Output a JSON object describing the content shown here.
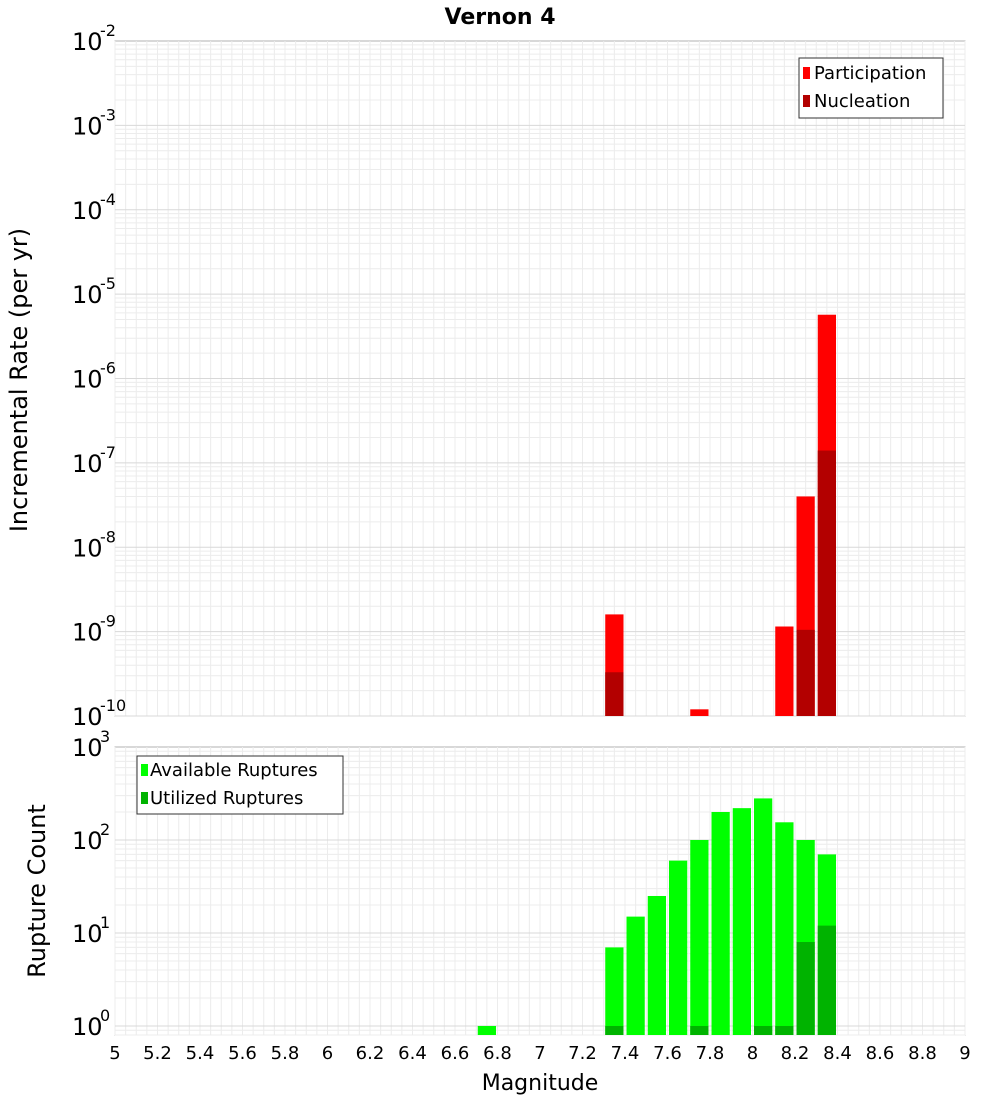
{
  "title": "Vernon 4",
  "chart_data": [
    {
      "type": "bar",
      "ylabel": "Incremental Rate (per yr)",
      "yscale": "log",
      "ylim": [
        1e-10,
        0.01
      ],
      "y_ticks": [
        {
          "base": "10",
          "exp": "-2",
          "value": 0.01
        },
        {
          "base": "10",
          "exp": "-3",
          "value": 0.001
        },
        {
          "base": "10",
          "exp": "-4",
          "value": 0.0001
        },
        {
          "base": "10",
          "exp": "-5",
          "value": 1e-05
        },
        {
          "base": "10",
          "exp": "-6",
          "value": 1e-06
        },
        {
          "base": "10",
          "exp": "-7",
          "value": 1e-07
        },
        {
          "base": "10",
          "exp": "-8",
          "value": 1e-08
        },
        {
          "base": "10",
          "exp": "-9",
          "value": 1e-09
        },
        {
          "base": "10",
          "exp": "-10",
          "value": 1e-10
        }
      ],
      "legend_position": "top-right",
      "series": [
        {
          "name": "Participation",
          "color": "#ff0000",
          "points": [
            [
              7.35,
              1.6e-09
            ],
            [
              7.75,
              1.2e-10
            ],
            [
              8.15,
              1.15e-09
            ],
            [
              8.25,
              4e-08
            ],
            [
              8.35,
              5.7e-06
            ]
          ]
        },
        {
          "name": "Nucleation",
          "color": "#b30000",
          "points": [
            [
              7.35,
              3.3e-10
            ],
            [
              8.25,
              1.05e-09
            ],
            [
              8.35,
              1.4e-07
            ]
          ]
        }
      ]
    },
    {
      "type": "bar",
      "ylabel": "Rupture Count",
      "yscale": "log",
      "ylim": [
        0.8,
        1000
      ],
      "y_ticks": [
        {
          "base": "10",
          "exp": "3",
          "value": 1000
        },
        {
          "base": "10",
          "exp": "2",
          "value": 100
        },
        {
          "base": "10",
          "exp": "1",
          "value": 10
        },
        {
          "base": "10",
          "exp": "0",
          "value": 1
        }
      ],
      "legend_position": "top-left",
      "series": [
        {
          "name": "Available Ruptures",
          "color": "#00ff00",
          "points": [
            [
              6.75,
              1
            ],
            [
              7.35,
              7
            ],
            [
              7.45,
              15
            ],
            [
              7.55,
              25
            ],
            [
              7.65,
              60
            ],
            [
              7.75,
              100
            ],
            [
              7.85,
              200
            ],
            [
              7.95,
              220
            ],
            [
              8.05,
              280
            ],
            [
              8.15,
              155
            ],
            [
              8.25,
              100
            ],
            [
              8.35,
              70
            ]
          ]
        },
        {
          "name": "Utilized Ruptures",
          "color": "#00b300",
          "points": [
            [
              7.35,
              1
            ],
            [
              7.75,
              1
            ],
            [
              8.05,
              1
            ],
            [
              8.15,
              1
            ],
            [
              8.25,
              8
            ],
            [
              8.35,
              12
            ]
          ]
        }
      ]
    }
  ],
  "x_axis": {
    "label": "Magnitude",
    "range": [
      5,
      9
    ],
    "tick_labels": [
      "5",
      "5.2",
      "5.4",
      "5.6",
      "5.8",
      "6",
      "6.2",
      "6.4",
      "6.6",
      "6.8",
      "7",
      "7.2",
      "7.4",
      "7.6",
      "7.8",
      "8",
      "8.2",
      "8.4",
      "8.6",
      "8.8",
      "9"
    ]
  }
}
